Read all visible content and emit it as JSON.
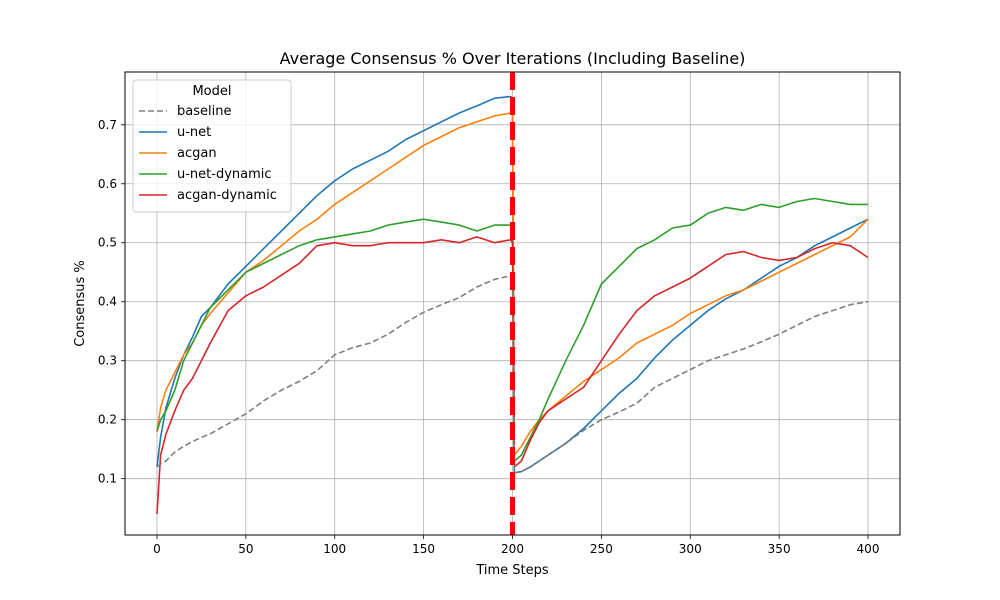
{
  "chart_data": {
    "type": "line",
    "title": "Average Consensus % Over Iterations (Including Baseline)",
    "xlabel": "Time Steps",
    "ylabel": "Consensus %",
    "xlim": [
      -18,
      418
    ],
    "ylim": [
      0.0045,
      0.7895
    ],
    "xticks": [
      0,
      50,
      100,
      150,
      200,
      250,
      300,
      350,
      400
    ],
    "yticks": [
      0.1,
      0.2,
      0.3,
      0.4,
      0.5,
      0.6,
      0.7
    ],
    "ytick_labels": [
      "0.1",
      "0.2",
      "0.3",
      "0.4",
      "0.5",
      "0.6",
      "0.7"
    ],
    "grid": true,
    "legend": {
      "title": "Model",
      "placement": "upper-left"
    },
    "vline": {
      "x": 200,
      "color": "#ff0000",
      "style": "dashed"
    },
    "x": [
      0,
      2,
      5,
      10,
      15,
      20,
      25,
      30,
      40,
      50,
      60,
      70,
      80,
      90,
      100,
      110,
      120,
      130,
      140,
      150,
      160,
      170,
      180,
      190,
      199,
      200,
      201,
      205,
      210,
      215,
      220,
      230,
      240,
      250,
      260,
      270,
      280,
      290,
      300,
      310,
      320,
      330,
      340,
      350,
      360,
      370,
      380,
      390,
      400
    ],
    "series": [
      {
        "name": "baseline",
        "color": "#7f7f7f",
        "dash": true,
        "values": [
          0.12,
          0.125,
          0.13,
          0.145,
          0.155,
          0.163,
          0.17,
          0.176,
          0.193,
          0.21,
          0.232,
          0.25,
          0.265,
          0.283,
          0.31,
          0.322,
          0.33,
          0.345,
          0.365,
          0.382,
          0.395,
          0.407,
          0.425,
          0.438,
          0.444,
          0.445,
          0.11,
          0.112,
          0.12,
          0.13,
          0.14,
          0.16,
          0.182,
          0.2,
          0.213,
          0.228,
          0.255,
          0.27,
          0.285,
          0.3,
          0.31,
          0.32,
          0.332,
          0.345,
          0.36,
          0.375,
          0.385,
          0.395,
          0.4
        ]
      },
      {
        "name": "u-net",
        "color": "#1f77b4",
        "dash": false,
        "values": [
          0.12,
          0.17,
          0.22,
          0.27,
          0.31,
          0.34,
          0.375,
          0.39,
          0.43,
          0.46,
          0.49,
          0.52,
          0.55,
          0.58,
          0.605,
          0.625,
          0.64,
          0.655,
          0.675,
          0.69,
          0.705,
          0.72,
          0.732,
          0.745,
          0.748,
          0.745,
          0.11,
          0.112,
          0.12,
          0.13,
          0.14,
          0.16,
          0.185,
          0.215,
          0.245,
          0.27,
          0.305,
          0.335,
          0.36,
          0.385,
          0.405,
          0.42,
          0.44,
          0.46,
          0.475,
          0.495,
          0.51,
          0.525,
          0.54
        ]
      },
      {
        "name": "acgan",
        "color": "#ff7f0e",
        "dash": false,
        "values": [
          0.18,
          0.22,
          0.25,
          0.28,
          0.31,
          0.33,
          0.36,
          0.38,
          0.415,
          0.45,
          0.47,
          0.495,
          0.52,
          0.54,
          0.565,
          0.585,
          0.605,
          0.625,
          0.645,
          0.665,
          0.68,
          0.695,
          0.705,
          0.715,
          0.72,
          0.718,
          0.14,
          0.155,
          0.18,
          0.2,
          0.215,
          0.24,
          0.265,
          0.285,
          0.305,
          0.33,
          0.345,
          0.36,
          0.38,
          0.395,
          0.41,
          0.42,
          0.435,
          0.45,
          0.465,
          0.48,
          0.495,
          0.51,
          0.54
        ]
      },
      {
        "name": "u-net-dynamic",
        "color": "#2ca02c",
        "dash": false,
        "values": [
          0.18,
          0.2,
          0.215,
          0.25,
          0.3,
          0.33,
          0.36,
          0.39,
          0.42,
          0.45,
          0.465,
          0.48,
          0.495,
          0.505,
          0.51,
          0.515,
          0.52,
          0.53,
          0.535,
          0.54,
          0.535,
          0.53,
          0.52,
          0.53,
          0.53,
          0.53,
          0.13,
          0.14,
          0.17,
          0.2,
          0.235,
          0.3,
          0.36,
          0.43,
          0.46,
          0.49,
          0.505,
          0.525,
          0.53,
          0.55,
          0.56,
          0.555,
          0.565,
          0.56,
          0.57,
          0.575,
          0.57,
          0.565,
          0.565
        ]
      },
      {
        "name": "acgan-dynamic",
        "color": "#d62728",
        "dash": false,
        "values": [
          0.04,
          0.14,
          0.175,
          0.215,
          0.25,
          0.27,
          0.3,
          0.33,
          0.385,
          0.41,
          0.425,
          0.445,
          0.465,
          0.495,
          0.5,
          0.495,
          0.495,
          0.5,
          0.5,
          0.5,
          0.505,
          0.5,
          0.51,
          0.5,
          0.505,
          0.5,
          0.12,
          0.13,
          0.165,
          0.195,
          0.215,
          0.235,
          0.255,
          0.3,
          0.345,
          0.385,
          0.41,
          0.425,
          0.44,
          0.46,
          0.48,
          0.485,
          0.475,
          0.47,
          0.475,
          0.49,
          0.5,
          0.495,
          0.475
        ]
      }
    ]
  }
}
